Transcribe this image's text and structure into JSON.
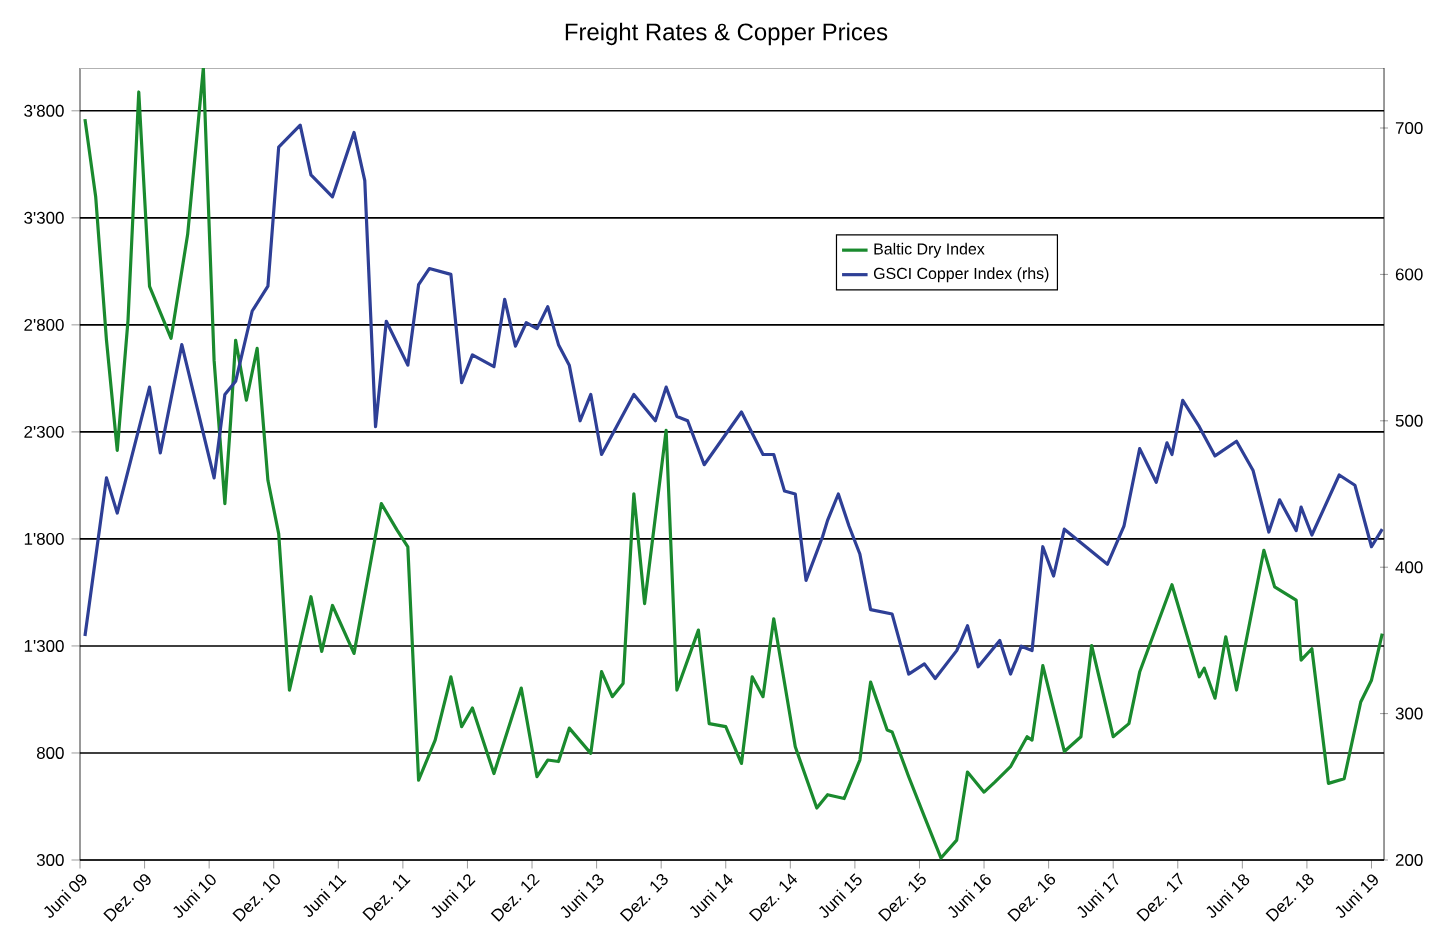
{
  "chart_data": {
    "type": "line",
    "title": "Freight Rates & Copper Prices",
    "xlim": [
      "2009-06",
      "2019-07-06"
    ],
    "xticks": [
      {
        "value": "2009-06",
        "label": "Juni 09"
      },
      {
        "value": "2009-12",
        "label": "Dez. 09"
      },
      {
        "value": "2010-06",
        "label": "Juni 10"
      },
      {
        "value": "2010-12",
        "label": "Dez. 10"
      },
      {
        "value": "2011-06",
        "label": "Juni 11"
      },
      {
        "value": "2011-12",
        "label": "Dez. 11"
      },
      {
        "value": "2012-06",
        "label": "Juni 12"
      },
      {
        "value": "2012-12",
        "label": "Dez. 12"
      },
      {
        "value": "2013-06",
        "label": "Juni 13"
      },
      {
        "value": "2013-12",
        "label": "Dez. 13"
      },
      {
        "value": "2014-06",
        "label": "Juni 14"
      },
      {
        "value": "2014-12",
        "label": "Dez. 14"
      },
      {
        "value": "2015-06",
        "label": "Juni 15"
      },
      {
        "value": "2015-12",
        "label": "Dez. 15"
      },
      {
        "value": "2016-06",
        "label": "Juni 16"
      },
      {
        "value": "2016-12",
        "label": "Dez. 16"
      },
      {
        "value": "2017-06",
        "label": "Juni 17"
      },
      {
        "value": "2017-12",
        "label": "Dez. 17"
      },
      {
        "value": "2018-06",
        "label": "Juni 18"
      },
      {
        "value": "2018-12",
        "label": "Dez. 18"
      },
      {
        "value": "2019-06",
        "label": "Juni 19"
      }
    ],
    "ylim": [
      300,
      4000
    ],
    "yticks": [
      300,
      800,
      {
        "value": 1300,
        "label": "1'300"
      },
      {
        "value": 1800,
        "label": "1'800"
      },
      {
        "value": 2300,
        "label": "2'300"
      },
      {
        "value": 2800,
        "label": "2'800"
      },
      {
        "value": 3300,
        "label": "3'300"
      },
      {
        "value": 3800,
        "label": "3'800"
      }
    ],
    "y2lim": [
      200,
      741
    ],
    "y2ticks": [
      200,
      300,
      400,
      500,
      600,
      700
    ],
    "grid": "y",
    "legend": "top right",
    "marker": "none",
    "line_style": "solid",
    "series": [
      {
        "name": "Baltic Dry Index",
        "color": "#1a8a2e",
        "x": [
          "2009-06-15",
          "2009-07-15",
          "2009-08-15",
          "2009-09-15",
          "2009-10-15",
          "2009-11-15",
          "2009-12-15",
          "2010-02-15",
          "2010-04-01",
          "2010-05-15",
          "2010-06-15",
          "2010-07-15",
          "2010-08-01",
          "2010-08-15",
          "2010-09-15",
          "2010-10-15",
          "2010-11-15",
          "2010-12-15",
          "2011-01-15",
          "2011-03-15",
          "2011-04-15",
          "2011-05-15",
          "2011-07-15",
          "2011-10-01",
          "2011-11-15",
          "2011-12-15",
          "2012-01-15",
          "2012-03-01",
          "2012-04-15",
          "2012-05-15",
          "2012-06-15",
          "2012-08-15",
          "2012-11-01",
          "2012-12-15",
          "2013-01-15",
          "2013-02-15",
          "2013-03-15",
          "2013-05-15",
          "2013-06-15",
          "2013-07-15",
          "2013-08-15",
          "2013-09-15",
          "2013-10-15",
          "2013-12-15",
          "2014-01-15",
          "2014-03-15",
          "2014-04-15",
          "2014-06-01",
          "2014-07-15",
          "2014-08-15",
          "2014-09-15",
          "2014-10-15",
          "2014-12-15",
          "2015-02-15",
          "2015-03-15",
          "2015-05-01",
          "2015-06-15",
          "2015-07-15",
          "2015-09-01",
          "2015-09-15",
          "2015-11-01",
          "2015-12-15",
          "2016-02-01",
          "2016-03-15",
          "2016-04-15",
          "2016-06-01",
          "2016-07-01",
          "2016-08-15",
          "2016-10-01",
          "2016-10-15",
          "2016-11-15",
          "2017-01-15",
          "2017-03-01",
          "2017-04-01",
          "2017-06-01",
          "2017-07-15",
          "2017-08-15",
          "2017-11-15",
          "2018-02-01",
          "2018-02-15",
          "2018-03-15",
          "2018-04-15",
          "2018-05-15",
          "2018-08-01",
          "2018-09-01",
          "2018-11-01",
          "2018-11-15",
          "2018-12-15",
          "2019-02-01",
          "2019-03-15",
          "2019-05-01",
          "2019-06-01",
          "2019-07-01"
        ],
        "values": [
          3761,
          3397,
          2728,
          2214,
          2821,
          3888,
          2980,
          2737,
          3222,
          4000,
          2634,
          1965,
          2354,
          2728,
          2448,
          2690,
          2074,
          1825,
          1094,
          1530,
          1274,
          1489,
          1265,
          1965,
          1841,
          1763,
          673,
          860,
          1156,
          923,
          1010,
          704,
          1103,
          689,
          767,
          760,
          916,
          798,
          1180,
          1063,
          1125,
          2011,
          1498,
          2307,
          1094,
          1374,
          937,
          923,
          751,
          1156,
          1063,
          1427,
          829,
          543,
          605,
          587,
          767,
          1131,
          907,
          898,
          689,
          503,
          309,
          393,
          711,
          617,
          664,
          736,
          876,
          860,
          1208,
          807,
          876,
          1302,
          876,
          937,
          1178,
          1586,
          1156,
          1196,
          1056,
          1343,
          1094,
          1747,
          1576,
          1514,
          1234,
          1287,
          658,
          680,
          1038,
          1140,
          1358
        ]
      },
      {
        "name": "GSCI Copper Index (rhs)",
        "color": "#2e3f96",
        "axis": "y2",
        "x": [
          "2009-06-15",
          "2009-08-15",
          "2009-09-15",
          "2009-12-15",
          "2010-01-15",
          "2010-03-15",
          "2010-06-15",
          "2010-07-15",
          "2010-08-15",
          "2010-10-01",
          "2010-11-15",
          "2010-12-15",
          "2011-02-15",
          "2011-03-15",
          "2011-05-15",
          "2011-07-15",
          "2011-08-15",
          "2011-09-15",
          "2011-10-15",
          "2011-12-15",
          "2012-01-15",
          "2012-02-15",
          "2012-04-15",
          "2012-05-15",
          "2012-06-15",
          "2012-08-15",
          "2012-09-15",
          "2012-10-15",
          "2012-11-15",
          "2012-12-15",
          "2013-01-15",
          "2013-02-15",
          "2013-03-15",
          "2013-04-15",
          "2013-05-15",
          "2013-06-15",
          "2013-09-15",
          "2013-11-15",
          "2013-12-15",
          "2014-01-15",
          "2014-02-15",
          "2014-04-01",
          "2014-07-15",
          "2014-09-15",
          "2014-10-15",
          "2014-11-15",
          "2014-12-15",
          "2015-01-15",
          "2015-03-01",
          "2015-03-15",
          "2015-04-15",
          "2015-05-15",
          "2015-06-15",
          "2015-07-15",
          "2015-09-15",
          "2015-11-01",
          "2015-12-15",
          "2016-01-15",
          "2016-03-15",
          "2016-04-15",
          "2016-05-15",
          "2016-07-15",
          "2016-08-15",
          "2016-09-15",
          "2016-10-15",
          "2016-11-15",
          "2016-12-15",
          "2017-01-15",
          "2017-05-15",
          "2017-07-01",
          "2017-08-15",
          "2017-10-01",
          "2017-11-01",
          "2017-11-15",
          "2017-12-15",
          "2018-02-01",
          "2018-03-15",
          "2018-05-15",
          "2018-07-01",
          "2018-08-15",
          "2018-09-15",
          "2018-11-01",
          "2018-11-15",
          "2018-12-15",
          "2019-03-01",
          "2019-04-15",
          "2019-06-01",
          "2019-07-01"
        ],
        "values": [
          353,
          461,
          437,
          523,
          478,
          552,
          461,
          518,
          527,
          575,
          592,
          687,
          702,
          668,
          653,
          697,
          664,
          496,
          568,
          538,
          593,
          604,
          600,
          526,
          545,
          537,
          583,
          551,
          567,
          563,
          578,
          552,
          538,
          500,
          518,
          477,
          518,
          500,
          523,
          503,
          500,
          470,
          506,
          477,
          477,
          452,
          450,
          391,
          421,
          432,
          450,
          428,
          409,
          371,
          368,
          327,
          334,
          324,
          343,
          360,
          332,
          350,
          327,
          346,
          343,
          414,
          394,
          426,
          402,
          428,
          481,
          458,
          485,
          477,
          514,
          496,
          476,
          486,
          466,
          424,
          446,
          425,
          441,
          422,
          463,
          456,
          414,
          426
        ]
      }
    ]
  }
}
